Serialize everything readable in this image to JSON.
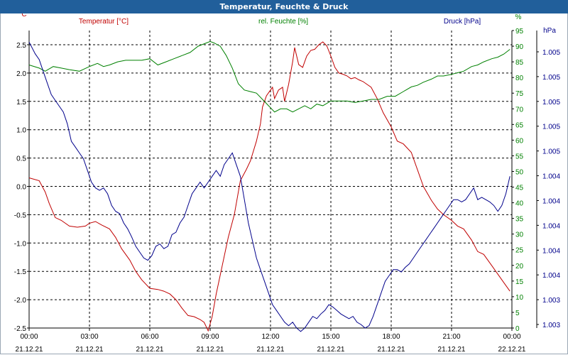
{
  "window": {
    "title": "Temperatur, Feuchte & Druck"
  },
  "colors": {
    "temperature": "#c00000",
    "humidity": "#008000",
    "pressure": "#00008b",
    "title_bar": "#215f9b",
    "grid": "#000000"
  },
  "chart_data": {
    "type": "line",
    "title": "Temperatur, Feuchte & Druck",
    "legend": [
      "Temperatur [°C]",
      "rel. Feuchte [%]",
      "Druck [hPa]"
    ],
    "axes": {
      "temperature": {
        "unit_label": "°C",
        "range": [
          -2.5,
          2.5
        ],
        "ticks": [
          "2.5",
          "2.0",
          "1.5",
          "1.0",
          "0.5",
          "0.0",
          "-0.5",
          "-1.0",
          "-1.5",
          "-2.0",
          "-2.5"
        ]
      },
      "humidity": {
        "unit_label": "%",
        "range": [
          0,
          95
        ],
        "ticks": [
          "95",
          "90",
          "85",
          "80",
          "75",
          "70",
          "65",
          "60",
          "55",
          "50",
          "45",
          "40",
          "35",
          "30",
          "25",
          "20",
          "15",
          "10",
          "5",
          "0"
        ]
      },
      "pressure": {
        "unit_label": "hPa",
        "range": [
          1003.0,
          1005.5
        ],
        "ticks": [
          "1.005",
          "1.005",
          "1.005",
          "1.005",
          "1.005",
          "1.004",
          "1.004",
          "1.004",
          "1.004",
          "1.004",
          "1.003",
          "1.003"
        ]
      }
    },
    "x": {
      "range_hours": [
        0,
        24
      ],
      "tick_times": [
        "00:00",
        "03:00",
        "06:00",
        "09:00",
        "12:00",
        "15:00",
        "18:00",
        "21:00",
        "00:00"
      ],
      "tick_dates": [
        "21.12.21",
        "21.12.21",
        "21.12.21",
        "21.12.21",
        "21.12.21",
        "21.12.21",
        "21.12.21",
        "21.12.21",
        "22.12.21"
      ]
    },
    "series": [
      {
        "name": "Temperatur [°C]",
        "axis": "temperature",
        "x": [
          0,
          0.5,
          0.8,
          1.0,
          1.3,
          1.6,
          2.0,
          2.4,
          2.8,
          3.0,
          3.3,
          3.6,
          4.0,
          4.3,
          4.6,
          5.0,
          5.3,
          5.6,
          6.0,
          6.4,
          6.7,
          7.0,
          7.3,
          7.6,
          7.9,
          8.2,
          8.5,
          8.7,
          8.9,
          9.1,
          9.3,
          9.6,
          9.9,
          10.2,
          10.5,
          10.8,
          11.0,
          11.3,
          11.5,
          11.6,
          11.8,
          12.0,
          12.1,
          12.2,
          12.4,
          12.6,
          12.7,
          12.9,
          13.1,
          13.2,
          13.4,
          13.6,
          13.8,
          14.0,
          14.2,
          14.4,
          14.6,
          14.8,
          15.0,
          15.2,
          15.4,
          15.6,
          15.8,
          16.0,
          16.2,
          16.4,
          16.6,
          16.8,
          17.0,
          17.3,
          17.6,
          18.0,
          18.3,
          18.6,
          19.0,
          19.3,
          19.6,
          20.0,
          20.3,
          20.6,
          21.0,
          21.3,
          21.6,
          22.0,
          22.3,
          22.6,
          23.0,
          23.3,
          23.6,
          23.9
        ],
        "y": [
          0.15,
          0.1,
          -0.1,
          -0.3,
          -0.55,
          -0.6,
          -0.7,
          -0.72,
          -0.7,
          -0.65,
          -0.62,
          -0.68,
          -0.75,
          -0.9,
          -1.1,
          -1.3,
          -1.5,
          -1.65,
          -1.8,
          -1.82,
          -1.85,
          -1.9,
          -2.0,
          -2.15,
          -2.28,
          -2.3,
          -2.35,
          -2.4,
          -2.55,
          -2.3,
          -1.9,
          -1.4,
          -0.9,
          -0.5,
          0.1,
          0.3,
          0.45,
          0.8,
          1.1,
          1.4,
          1.6,
          1.7,
          1.75,
          1.55,
          1.7,
          1.75,
          1.5,
          1.8,
          2.2,
          2.45,
          2.15,
          2.1,
          2.3,
          2.4,
          2.42,
          2.5,
          2.55,
          2.48,
          2.3,
          2.1,
          2.0,
          1.98,
          1.95,
          1.9,
          1.92,
          1.88,
          1.85,
          1.8,
          1.75,
          1.55,
          1.3,
          1.05,
          0.8,
          0.75,
          0.6,
          0.3,
          0.0,
          -0.25,
          -0.4,
          -0.5,
          -0.6,
          -0.7,
          -0.75,
          -0.95,
          -1.15,
          -1.2,
          -1.4,
          -1.55,
          -1.7,
          -1.85
        ]
      },
      {
        "name": "rel. Feuchte [%]",
        "axis": "humidity",
        "x": [
          0,
          0.5,
          0.8,
          1.2,
          1.6,
          2.0,
          2.5,
          3.0,
          3.4,
          3.7,
          4.0,
          4.4,
          4.8,
          5.2,
          5.6,
          6.0,
          6.4,
          6.8,
          7.2,
          7.6,
          8.0,
          8.4,
          8.8,
          9.0,
          9.2,
          9.5,
          9.8,
          10.1,
          10.4,
          10.7,
          11.0,
          11.3,
          11.6,
          11.9,
          12.2,
          12.5,
          12.8,
          13.1,
          13.4,
          13.7,
          14.0,
          14.3,
          14.6,
          15.0,
          15.4,
          15.8,
          16.2,
          16.6,
          17.0,
          17.4,
          17.8,
          18.2,
          18.6,
          19.0,
          19.3,
          19.6,
          20.0,
          20.3,
          20.6,
          21.0,
          21.3,
          21.6,
          22.0,
          22.3,
          22.6,
          23.0,
          23.3,
          23.6,
          23.9
        ],
        "y": [
          84,
          83,
          82,
          83.5,
          83,
          82.5,
          82,
          83.5,
          84.5,
          83.5,
          84,
          85,
          85.5,
          85.5,
          85.5,
          86,
          84,
          85,
          86,
          87,
          88,
          90,
          91,
          91.5,
          91,
          90,
          87,
          83,
          78,
          76,
          75.5,
          75,
          73,
          71,
          69,
          70,
          70,
          69,
          70,
          71,
          70,
          71.5,
          71,
          72.5,
          72.5,
          72.5,
          72,
          72.5,
          73,
          73,
          74,
          74,
          75.5,
          77,
          77.5,
          78.5,
          79.5,
          80.5,
          80.5,
          81,
          81.5,
          82,
          83.5,
          84,
          85,
          86,
          86.5,
          87.5,
          89
        ]
      },
      {
        "name": "Druck [hPa]",
        "axis": "pressure",
        "x": [
          0,
          0.3,
          0.5,
          0.7,
          0.9,
          1.1,
          1.3,
          1.5,
          1.7,
          1.9,
          2.1,
          2.3,
          2.5,
          2.7,
          2.9,
          3.1,
          3.3,
          3.5,
          3.7,
          3.9,
          4.1,
          4.3,
          4.5,
          4.7,
          4.9,
          5.1,
          5.3,
          5.5,
          5.7,
          5.9,
          6.1,
          6.3,
          6.5,
          6.7,
          6.9,
          7.1,
          7.3,
          7.5,
          7.7,
          7.9,
          8.1,
          8.3,
          8.5,
          8.7,
          8.9,
          9.1,
          9.3,
          9.5,
          9.7,
          9.9,
          10.1,
          10.3,
          10.5,
          10.7,
          10.9,
          11.1,
          11.3,
          11.5,
          11.7,
          11.9,
          12.1,
          12.3,
          12.5,
          12.7,
          12.9,
          13.1,
          13.3,
          13.5,
          13.7,
          13.9,
          14.1,
          14.3,
          14.5,
          14.7,
          14.9,
          15.1,
          15.3,
          15.5,
          15.7,
          15.9,
          16.1,
          16.3,
          16.5,
          16.7,
          16.9,
          17.1,
          17.3,
          17.5,
          17.7,
          17.9,
          18.1,
          18.3,
          18.5,
          18.7,
          18.9,
          19.1,
          19.3,
          19.5,
          19.7,
          19.9,
          20.1,
          20.3,
          20.5,
          20.7,
          20.9,
          21.1,
          21.3,
          21.5,
          21.7,
          21.9,
          22.1,
          22.3,
          22.5,
          22.7,
          22.9,
          23.1,
          23.3,
          23.5,
          23.7,
          23.9
        ],
        "y": [
          1005.45,
          1005.35,
          1005.3,
          1005.2,
          1005.1,
          1005.0,
          1004.95,
          1004.9,
          1004.85,
          1004.75,
          1004.6,
          1004.55,
          1004.5,
          1004.45,
          1004.35,
          1004.25,
          1004.2,
          1004.18,
          1004.2,
          1004.15,
          1004.05,
          1004.0,
          1003.98,
          1003.9,
          1003.85,
          1003.78,
          1003.7,
          1003.65,
          1003.6,
          1003.58,
          1003.62,
          1003.7,
          1003.72,
          1003.68,
          1003.7,
          1003.8,
          1003.82,
          1003.9,
          1003.95,
          1004.05,
          1004.15,
          1004.2,
          1004.25,
          1004.2,
          1004.25,
          1004.3,
          1004.35,
          1004.3,
          1004.4,
          1004.45,
          1004.5,
          1004.4,
          1004.3,
          1004.1,
          1003.9,
          1003.75,
          1003.6,
          1003.5,
          1003.4,
          1003.3,
          1003.2,
          1003.15,
          1003.1,
          1003.05,
          1003.02,
          1003.05,
          1003.0,
          1002.97,
          1003.0,
          1003.05,
          1003.1,
          1003.08,
          1003.12,
          1003.15,
          1003.2,
          1003.18,
          1003.15,
          1003.12,
          1003.1,
          1003.08,
          1003.1,
          1003.05,
          1003.03,
          1003.0,
          1003.02,
          1003.1,
          1003.2,
          1003.3,
          1003.4,
          1003.45,
          1003.5,
          1003.5,
          1003.48,
          1003.52,
          1003.55,
          1003.6,
          1003.65,
          1003.7,
          1003.75,
          1003.8,
          1003.85,
          1003.9,
          1003.95,
          1004.0,
          1004.05,
          1004.1,
          1004.1,
          1004.08,
          1004.1,
          1004.15,
          1004.2,
          1004.1,
          1004.12,
          1004.1,
          1004.08,
          1004.05,
          1004.0,
          1004.05,
          1004.15,
          1004.3
        ]
      }
    ]
  }
}
